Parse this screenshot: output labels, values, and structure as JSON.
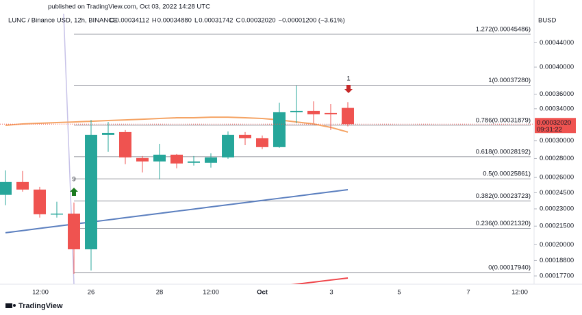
{
  "header": {
    "published": "published on TradingView.com, Oct 03, 2022 14:28 UTC"
  },
  "chart_data": {
    "type": "candlestick",
    "title": "LUNC / Binance USD, 12h, BINANCE",
    "ohlc_legend": [
      {
        "key": "O",
        "label": "0.00034112"
      },
      {
        "key": "H",
        "label": "0.00034880"
      },
      {
        "key": "L",
        "label": "0.00031742"
      },
      {
        "key": "C",
        "label": "0.00032020"
      }
    ],
    "change": "−0.00001200 (−3.61%)",
    "currency": "BUSD",
    "x_labels": [
      "12:00",
      "26",
      "28",
      "12:00",
      "Oct",
      "3",
      "5",
      "7",
      "12:00"
    ],
    "candles": {
      "open": [
        0.0002429,
        0.0002554,
        0.000248,
        0.0002252,
        0.0002258,
        0.0001964,
        0.0003071,
        0.0003104,
        0.0002805,
        0.0002768,
        0.0002842,
        0.0002753,
        0.0002753,
        0.0002812,
        0.0003071,
        0.000303,
        0.0002927,
        0.0003354,
        0.0003372,
        0.0003345,
        0.00034112
      ],
      "high": [
        0.0002673,
        0.0002666,
        0.0002506,
        0.0002365,
        0.0002358,
        0.0003255,
        0.0003229,
        0.0003129,
        0.0002827,
        0.0002965,
        0.000285,
        0.0002827,
        0.0002857,
        0.0003112,
        0.0003104,
        0.0003063,
        0.0003482,
        0.0003722,
        0.00035,
        0.0003463,
        0.0003488
      ],
      "low": [
        0.0002333,
        0.000246,
        0.0002223,
        0.0002223,
        0.0001785,
        0.0001808,
        0.0002873,
        0.0002738,
        0.0002652,
        0.0002581,
        0.0002695,
        0.0002724,
        0.0002702,
        0.0002797,
        0.0002949,
        0.0002903,
        0.0002919,
        0.0003213,
        0.0003213,
        0.0003129,
        0.00031742
      ],
      "close": [
        0.0002554,
        0.000248,
        0.0002252,
        0.0002258,
        0.0001964,
        0.0003071,
        0.0003095,
        0.0002812,
        0.0002768,
        0.0002842,
        0.0002746,
        0.0002768,
        0.0002812,
        0.0003071,
        0.000303,
        0.0002927,
        0.0003354,
        0.0003372,
        0.0003327,
        0.0003327,
        0.0003202
      ]
    },
    "colors": {
      "up": "#26a69a",
      "down": "#ef5350"
    },
    "lines": [
      {
        "color": "#f5a465",
        "values": [
          0.0003187,
          0.0003204,
          0.0003213,
          0.0003221,
          0.0003229,
          0.0003238,
          0.0003247,
          0.0003255,
          0.0003264,
          0.0003273,
          0.0003282,
          0.0003282,
          0.000329,
          0.000329,
          0.0003282,
          0.0003273,
          0.0003255,
          0.0003229,
          0.0003204,
          0.0003162,
          0.0003104
        ]
      },
      {
        "color": "#5b7fbf",
        "values": [
          0.0002095,
          0.0002113,
          0.0002131,
          0.0002149,
          0.0002167,
          0.0002185,
          0.0002203,
          0.0002222,
          0.0002241,
          0.000226,
          0.0002279,
          0.0002298,
          0.0002318,
          0.0002337,
          0.0002357,
          0.0002377,
          0.0002397,
          0.0002417,
          0.0002438,
          0.0002458,
          0.0002479
        ]
      },
      {
        "color": "#f0454a",
        "values": [
          null,
          null,
          null,
          null,
          null,
          null,
          null,
          null,
          null,
          null,
          null,
          null,
          null,
          null,
          null,
          null,
          0.00017,
          0.0001714,
          0.0001728,
          0.0001742,
          0.0001756
        ]
      }
    ],
    "log_scale": true,
    "ylim": [
      0.0001714,
      0.0004928
    ],
    "yticks": [
      {
        "value": 0.00044,
        "label": "0.00044000"
      },
      {
        "value": 0.0004,
        "label": "0.00040000"
      },
      {
        "value": 0.00036,
        "label": "0.00036000"
      },
      {
        "value": 0.00034,
        "label": "0.00034000"
      },
      {
        "value": 0.0003,
        "label": "0.00030000"
      },
      {
        "value": 0.00028,
        "label": "0.00028000"
      },
      {
        "value": 0.00026,
        "label": "0.00026000"
      },
      {
        "value": 0.000245,
        "label": "0.00024500"
      },
      {
        "value": 0.00023,
        "label": "0.00023000"
      },
      {
        "value": 0.000215,
        "label": "0.00021500"
      },
      {
        "value": 0.0002,
        "label": "0.00020000"
      },
      {
        "value": 0.000188,
        "label": "0.00018800"
      },
      {
        "value": 0.000177,
        "label": "0.00017700"
      }
    ],
    "grid": false,
    "fib_levels": [
      {
        "value": 0.00045486,
        "label": "1.272(0.00045486)"
      },
      {
        "value": 0.0003728,
        "label": "1(0.00037280)"
      },
      {
        "value": 0.00031879,
        "label": "0.786(0.00031879)"
      },
      {
        "value": 0.00028192,
        "label": "0.618(0.00028192)"
      },
      {
        "value": 0.00025861,
        "label": "0.5(0.00025861)"
      },
      {
        "value": 0.00023723,
        "label": "0.382(0.00023723)"
      },
      {
        "value": 0.0002132,
        "label": "0.236(0.00021320)"
      },
      {
        "value": 0.0001794,
        "label": "0(0.00017940)"
      }
    ],
    "last_price": {
      "value": 0.0003202,
      "label": "0.00032020",
      "countdown": "09:31:22"
    },
    "signals": [
      {
        "label": "9"
      },
      {
        "label": "1"
      }
    ]
  },
  "footer": {
    "brand": "TradingView"
  }
}
